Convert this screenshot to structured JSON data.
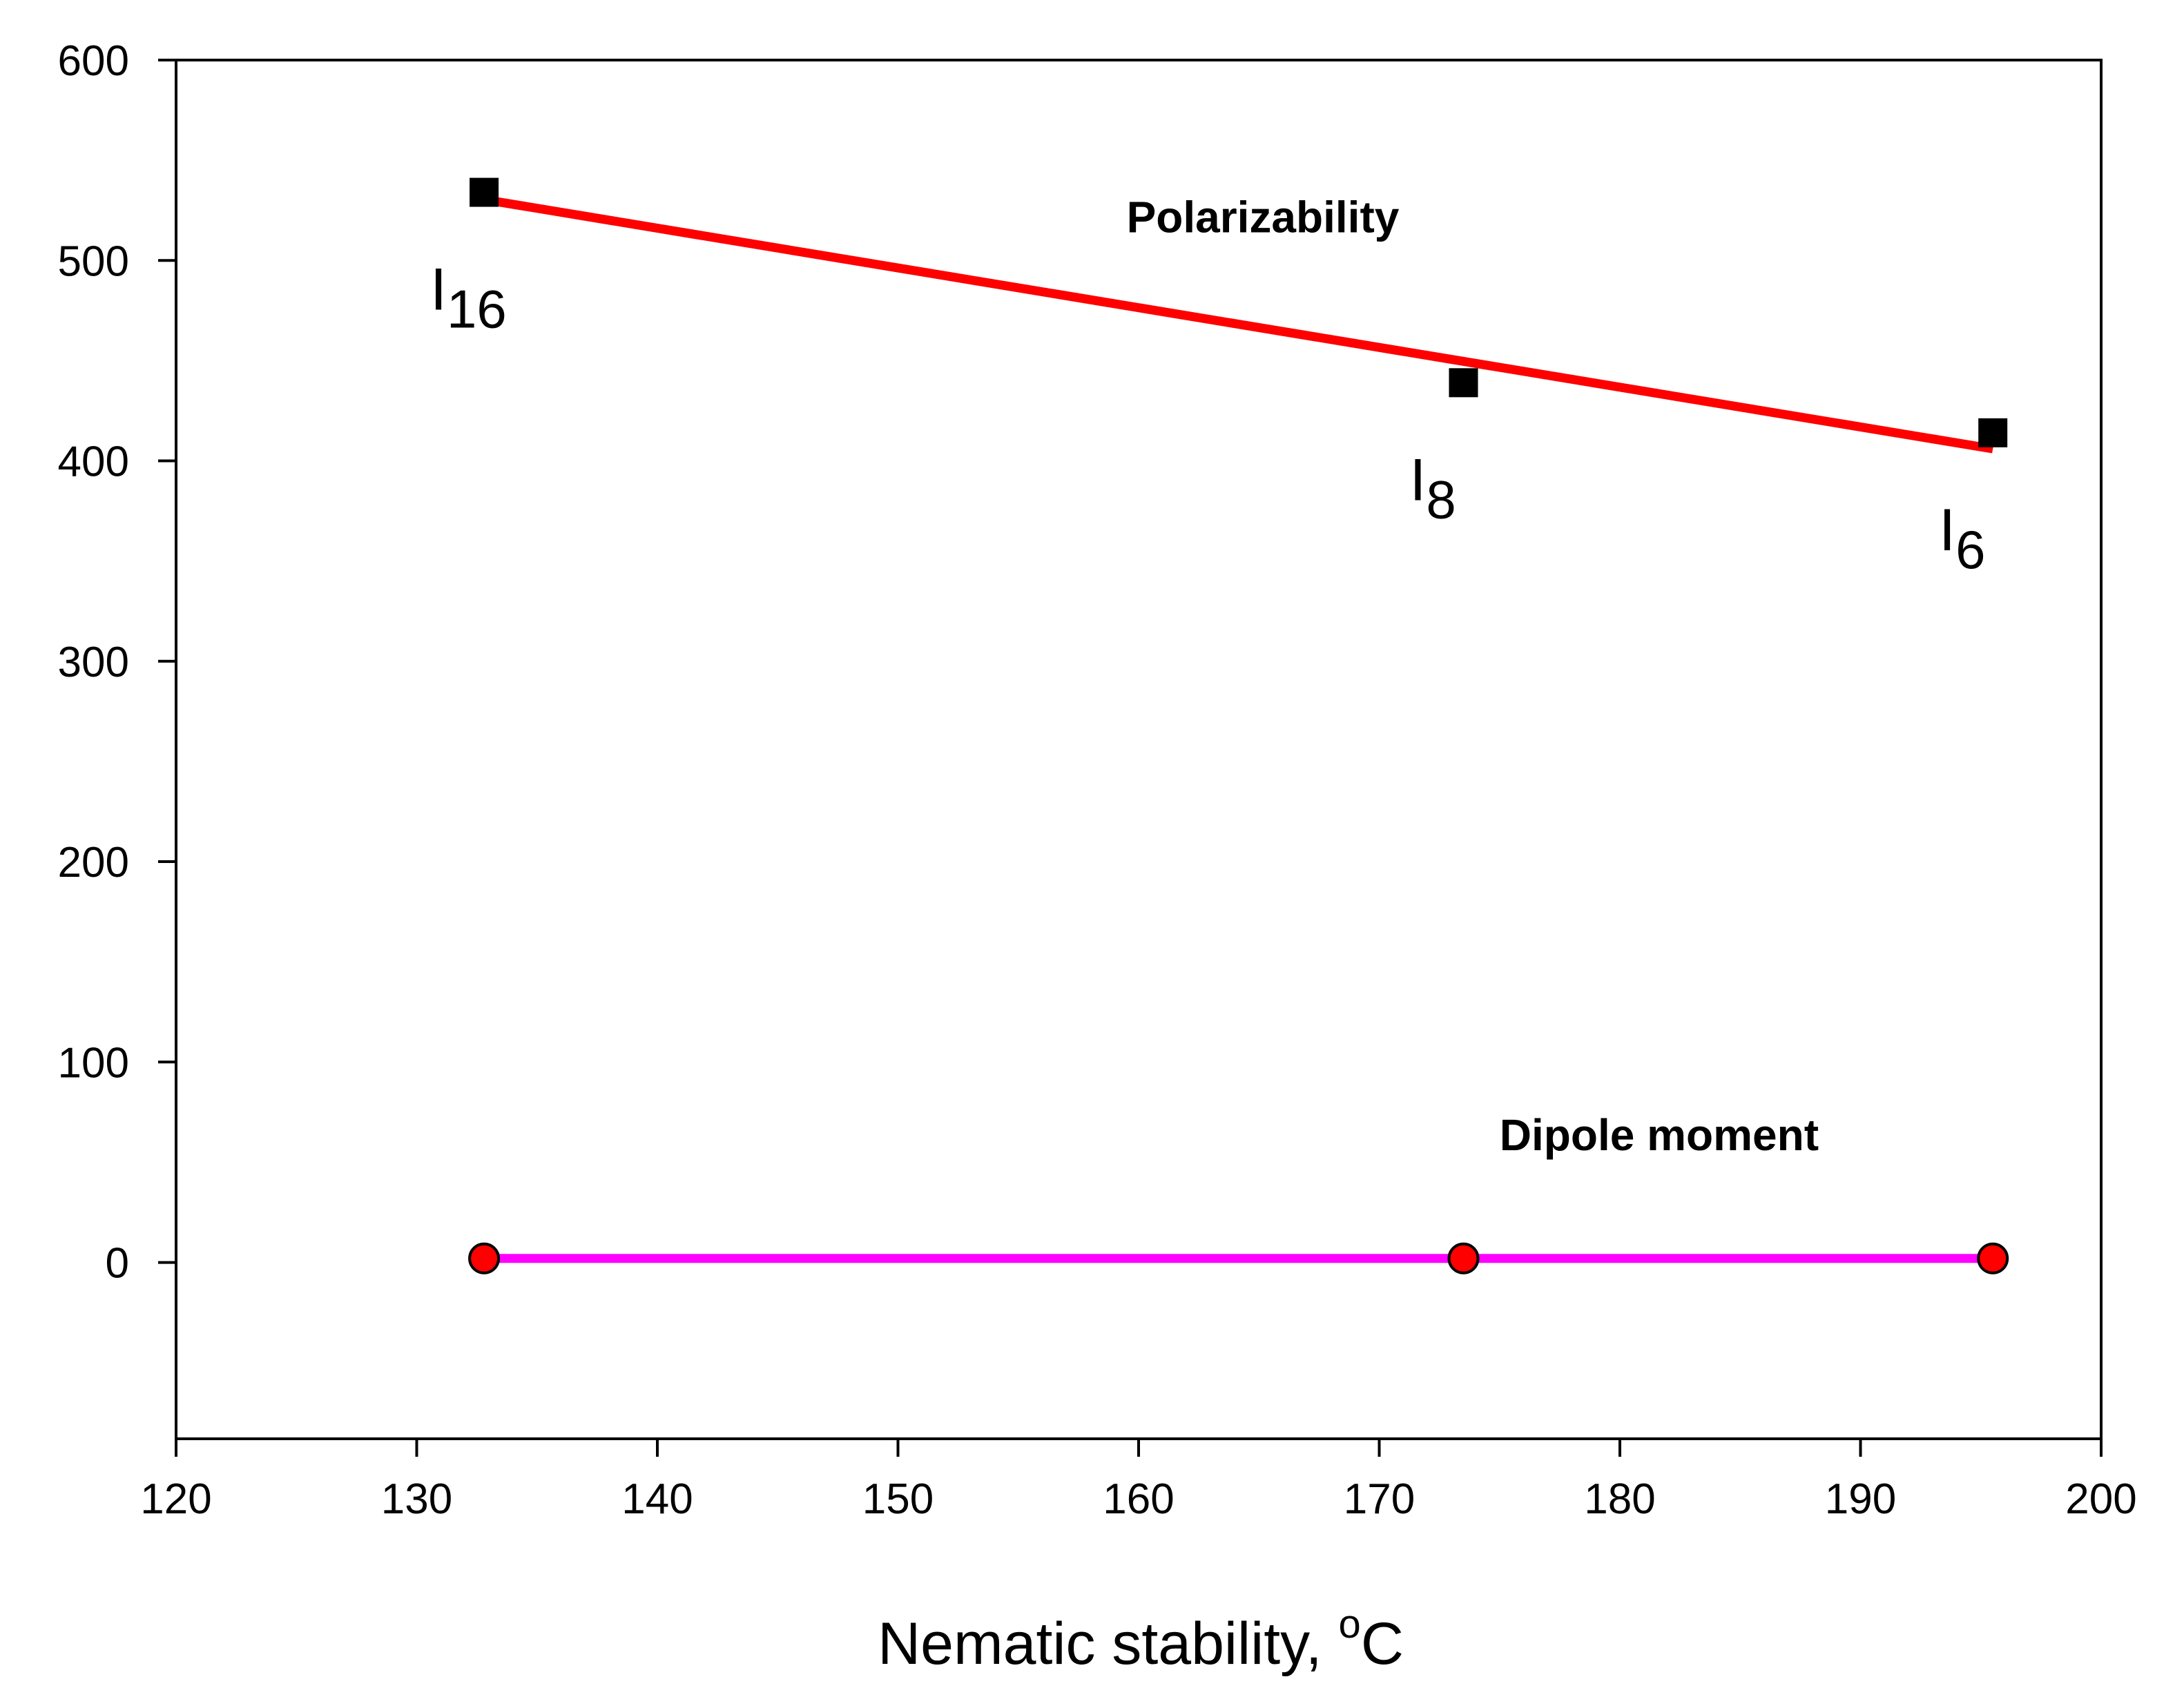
{
  "chart_data": {
    "type": "line",
    "title": "",
    "xlabel": "Nematic stability, ",
    "xlabel_superscript": "o",
    "xlabel_unit": "C",
    "ylabel": "",
    "xlim": [
      120,
      200
    ],
    "ylim": [
      -88,
      600
    ],
    "xticks": [
      120,
      130,
      140,
      150,
      160,
      170,
      180,
      190,
      200
    ],
    "yticks": [
      0,
      100,
      200,
      300,
      400,
      500,
      600
    ],
    "series": [
      {
        "name": "Polarizability",
        "marker": "square",
        "marker_color": "#000000",
        "fit_line_color": "#ff0000",
        "fit_line": {
          "x": [
            133,
            195.5
          ],
          "y": [
            530,
            406
          ]
        },
        "points": [
          {
            "x": 132.8,
            "y": 534,
            "label": "I",
            "label_sub": "16"
          },
          {
            "x": 173.5,
            "y": 439,
            "label": "I",
            "label_sub": "8"
          },
          {
            "x": 195.5,
            "y": 414,
            "label": "I",
            "label_sub": "6"
          }
        ]
      },
      {
        "name": "Dipole moment",
        "marker": "circle",
        "marker_color": "#ff0000",
        "line_color": "#ff00ff",
        "points": [
          {
            "x": 132.8,
            "y": 2
          },
          {
            "x": 173.5,
            "y": 2
          },
          {
            "x": 195.5,
            "y": 2
          }
        ]
      }
    ],
    "annotations": [
      {
        "text": "Polarizability",
        "x": 159.5,
        "y": 514
      },
      {
        "text": "Dipole moment",
        "x": 175,
        "y": 56
      }
    ]
  }
}
